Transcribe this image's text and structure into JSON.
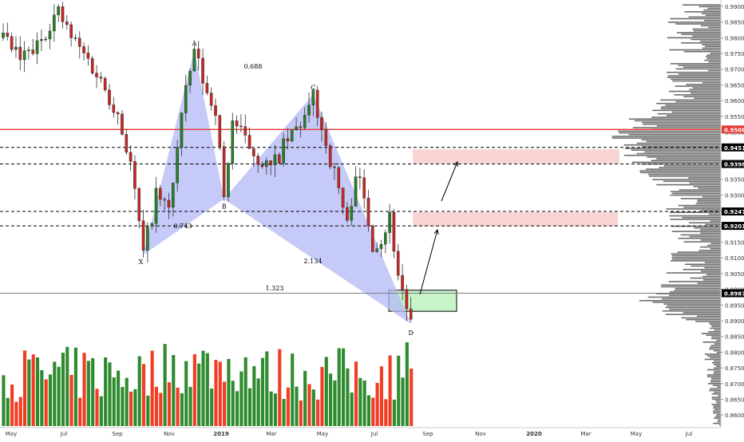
{
  "chart_data": {
    "type": "candlestick",
    "x_axis_labels": [
      "May",
      "Jul",
      "Sep",
      "Nov",
      "2019",
      "Mar",
      "May",
      "Jul",
      "Sep",
      "Nov",
      "2020",
      "Mar",
      "May",
      "Jul"
    ],
    "y_axis": {
      "ylim": [
        0.8565,
        0.9915
      ],
      "ticks": [
        "0.99000",
        "0.98500",
        "0.98000",
        "0.97500",
        "0.97000",
        "0.96500",
        "0.96000",
        "0.95500",
        "0.95000",
        "0.94500",
        "0.94000",
        "0.93500",
        "0.93000",
        "0.92500",
        "0.92000",
        "0.91500",
        "0.91000",
        "0.90500",
        "0.90000",
        "0.89500",
        "0.89000",
        "0.88500",
        "0.88000",
        "0.87500",
        "0.87000",
        "0.86500",
        "0.86000"
      ],
      "price_labels": [
        {
          "value": 0.95083,
          "text": "0.95083",
          "bg": "#e53935",
          "color": "#ffffff"
        },
        {
          "value": 0.94512,
          "text": "0.94512",
          "bg": "#000000",
          "color": "#ffffff"
        },
        {
          "value": 0.93985,
          "text": "0.93985",
          "bg": "#000000",
          "color": "#ffffff"
        },
        {
          "value": 0.92475,
          "text": "0.92475",
          "bg": "#000000",
          "color": "#ffffff"
        },
        {
          "value": 0.92017,
          "text": "0.92017",
          "bg": "#000000",
          "color": "#ffffff"
        },
        {
          "value": 0.89875,
          "text": "0.89875",
          "bg": "#000000",
          "color": "#ffffff"
        }
      ]
    },
    "pattern": {
      "points": [
        {
          "label": "X",
          "date_index": 33,
          "price": 0.911
        },
        {
          "label": "A",
          "date_index": 45,
          "price": 0.976
        },
        {
          "label": "B",
          "date_index": 52,
          "price": 0.9287
        },
        {
          "label": "C",
          "date_index": 73,
          "price": 0.962
        },
        {
          "label": "D",
          "date_index": 96,
          "price": 0.889
        }
      ],
      "ratios": [
        {
          "text": "0.743",
          "near": "XB"
        },
        {
          "text": "0.688",
          "near": "AC"
        },
        {
          "text": "2.134",
          "near": "BD"
        },
        {
          "text": "1.323",
          "near": "XD"
        }
      ]
    },
    "horizontal_levels": [
      {
        "value": 0.95083,
        "style": "solid",
        "color": "#e53935"
      },
      {
        "value": 0.94512,
        "style": "dashed",
        "color": "#000000"
      },
      {
        "value": 0.93985,
        "style": "dashed",
        "color": "#000000"
      },
      {
        "value": 0.92475,
        "style": "dashed",
        "color": "#000000"
      },
      {
        "value": 0.92017,
        "style": "dashed",
        "color": "#000000"
      },
      {
        "value": 0.89875,
        "style": "solid",
        "color": "#787b86"
      }
    ],
    "zones": [
      {
        "kind": "target",
        "from_price": 0.94,
        "to_price": 0.9445,
        "color": "#f8d4d4"
      },
      {
        "kind": "target",
        "from_price": 0.92,
        "to_price": 0.9245,
        "color": "#f8d4d4"
      },
      {
        "kind": "entry",
        "from_price": 0.893,
        "to_price": 0.8997,
        "color": "#c8f5c8"
      }
    ],
    "grid": false,
    "colors": {
      "up": "#26a69a",
      "down": "#ef5350",
      "volume_up": "#2e8b2e",
      "volume_down": "#f23c23",
      "pattern_fill": "#b3b8f5",
      "volume_profile": "#555555"
    }
  }
}
